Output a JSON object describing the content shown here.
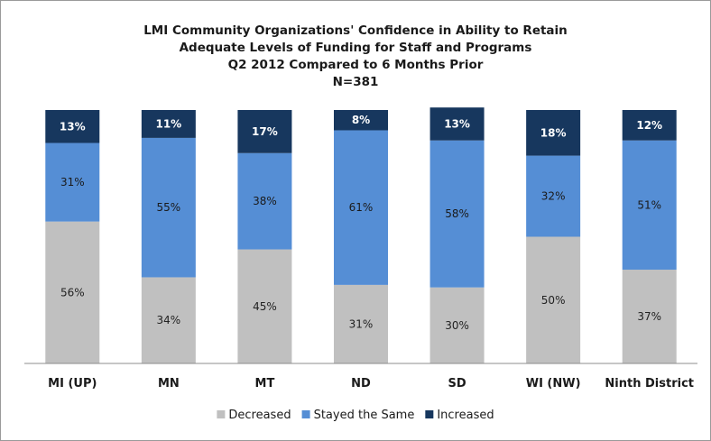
{
  "chart_data": {
    "type": "bar",
    "stacked": true,
    "title_lines": [
      "LMI Community Organizations' Confidence in Ability to Retain",
      "Adequate Levels of Funding for Staff and Programs",
      "Q2 2012 Compared to 6 Months Prior",
      "N=381"
    ],
    "categories": [
      "MI (UP)",
      "MN",
      "MT",
      "ND",
      "SD",
      "WI (NW)",
      "Ninth District"
    ],
    "series": [
      {
        "name": "Decreased",
        "color": "#c0c0c0",
        "label_color": "#222222",
        "values": [
          56,
          34,
          45,
          31,
          30,
          50,
          37
        ],
        "labels": [
          "56%",
          "34%",
          "45%",
          "31%",
          "30%",
          "50%",
          "37%"
        ]
      },
      {
        "name": "Stayed the Same",
        "color": "#558ed5",
        "label_color": "#1a1a1a",
        "values": [
          31,
          55,
          38,
          61,
          58,
          32,
          51
        ],
        "labels": [
          "31%",
          "55%",
          "38%",
          "61%",
          "58%",
          "32%",
          "51%"
        ]
      },
      {
        "name": "Increased",
        "color": "#17375e",
        "label_color": "#ffffff",
        "values": [
          13,
          11,
          17,
          8,
          13,
          18,
          12
        ],
        "labels": [
          "13%",
          "11%",
          "17%",
          "8%",
          "13%",
          "18%",
          "12%"
        ]
      }
    ],
    "ylim": [
      0,
      100
    ],
    "grid": false,
    "legend_position": "bottom"
  }
}
